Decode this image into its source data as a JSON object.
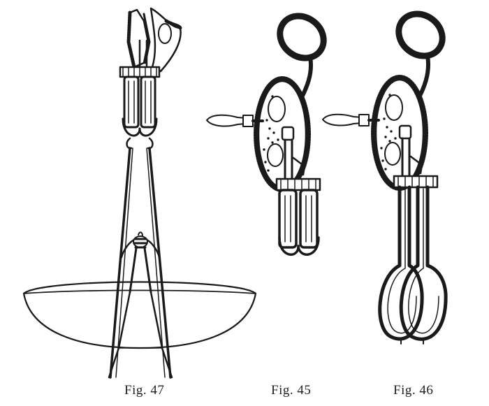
{
  "figures": [
    {
      "id": "fig47",
      "caption": "Fig. 47",
      "subject": "beater-lowered-into-bowl",
      "icon": "egg-beater-in-bowl-drawing"
    },
    {
      "id": "fig45",
      "caption": "Fig. 45",
      "subject": "rotary-beater-short-blades",
      "icon": "rotary-egg-beater-drawing"
    },
    {
      "id": "fig46",
      "caption": "Fig. 46",
      "subject": "rotary-beater-long-loops",
      "icon": "rotary-egg-beater-loops-drawing"
    }
  ],
  "ink_color": "#1a1a1a",
  "paper_color": "#ffffff"
}
